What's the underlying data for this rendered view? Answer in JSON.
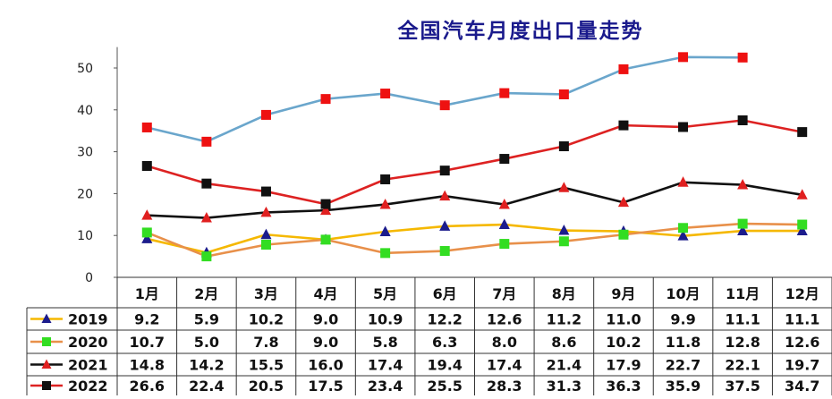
{
  "chart_data": {
    "type": "line",
    "title": "全国汽车月度出口量走势",
    "categories": [
      "1月",
      "2月",
      "3月",
      "4月",
      "5月",
      "6月",
      "7月",
      "8月",
      "9月",
      "10月",
      "11月",
      "12月"
    ],
    "yticks": [
      0,
      10,
      20,
      30,
      40,
      50
    ],
    "ylim": [
      0,
      55
    ],
    "grid": false,
    "legend": "data-table-left",
    "series": [
      {
        "name": "2019",
        "values": [
          9.2,
          5.9,
          10.2,
          9.0,
          10.9,
          12.2,
          12.6,
          11.2,
          11.0,
          9.9,
          11.1,
          11.1
        ],
        "labels": [
          "9.2",
          "5.9",
          "10.2",
          "9.0",
          "10.9",
          "12.2",
          "12.6",
          "11.2",
          "11.0",
          "9.9",
          "11.1",
          "11.1"
        ],
        "line_color": "#f5b800",
        "marker_color": "#1c1c8c",
        "marker": "triangle"
      },
      {
        "name": "2020",
        "values": [
          10.7,
          5.0,
          7.8,
          9.0,
          5.8,
          6.3,
          8.0,
          8.6,
          10.2,
          11.8,
          12.8,
          12.6
        ],
        "labels": [
          "10.7",
          "5.0",
          "7.8",
          "9.0",
          "5.8",
          "6.3",
          "8.0",
          "8.6",
          "10.2",
          "11.8",
          "12.8",
          "12.6"
        ],
        "line_color": "#e8904a",
        "marker_color": "#33dd22",
        "marker": "square"
      },
      {
        "name": "2021",
        "values": [
          14.8,
          14.2,
          15.5,
          16.0,
          17.4,
          19.4,
          17.4,
          21.4,
          17.9,
          22.7,
          22.1,
          19.7
        ],
        "labels": [
          "14.8",
          "14.2",
          "15.5",
          "16.0",
          "17.4",
          "19.4",
          "17.4",
          "21.4",
          "17.9",
          "22.7",
          "22.1",
          "19.7"
        ],
        "line_color": "#111111",
        "marker_color": "#e02020",
        "marker": "triangle"
      },
      {
        "name": "2022",
        "values": [
          26.6,
          22.4,
          20.5,
          17.5,
          23.4,
          25.5,
          28.3,
          31.3,
          36.3,
          35.9,
          37.5,
          34.7
        ],
        "labels": [
          "26.6",
          "22.4",
          "20.5",
          "17.5",
          "23.4",
          "25.5",
          "28.3",
          "31.3",
          "36.3",
          "35.9",
          "37.5",
          "34.7"
        ],
        "line_color": "#dd2222",
        "marker_color": "#111111",
        "marker": "square"
      },
      {
        "values": [
          35.8,
          32.4,
          38.8,
          42.6,
          43.9,
          41.1,
          44.0,
          43.7,
          49.7,
          52.6,
          52.5,
          null
        ],
        "line_color": "#6aa6cc",
        "marker_color": "#ee1111",
        "marker": "square"
      }
    ]
  }
}
